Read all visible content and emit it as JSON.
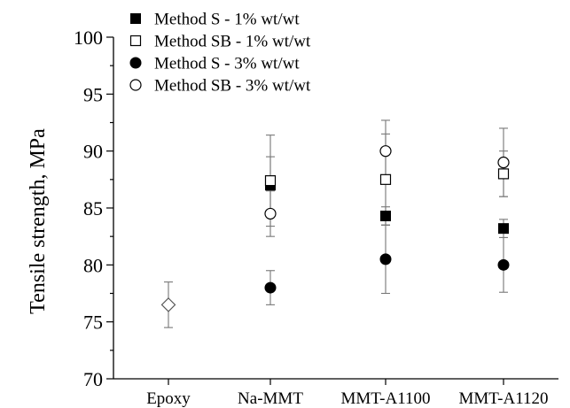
{
  "chart_data": {
    "type": "scatter",
    "title": "",
    "xlabel": "",
    "ylabel": "Tensile strength, MPa",
    "ylim": [
      70,
      100
    ],
    "yticks": [
      70,
      75,
      80,
      85,
      90,
      95,
      100
    ],
    "grid": false,
    "legend_position": "top-left",
    "categories": [
      "Epoxy",
      "Na-MMT",
      "MMT-A1100",
      "MMT-A1120"
    ],
    "series": [
      {
        "name": "Method S - 1% wt/wt",
        "marker": "square-filled",
        "values": [
          null,
          87.0,
          84.3,
          83.2
        ],
        "errors": [
          null,
          2.5,
          0.8,
          0.8
        ]
      },
      {
        "name": "Method SB - 1% wt/wt",
        "marker": "square-open",
        "values": [
          null,
          87.4,
          87.5,
          88.0
        ],
        "errors": [
          null,
          4.0,
          4.0,
          2.0
        ]
      },
      {
        "name": "Method S - 3% wt/wt",
        "marker": "circle-filled",
        "values": [
          null,
          78.0,
          80.5,
          80.0
        ],
        "errors": [
          null,
          1.5,
          3.0,
          2.4
        ]
      },
      {
        "name": "Method SB - 3% wt/wt",
        "marker": "circle-open",
        "values": [
          null,
          84.5,
          90.0,
          89.0
        ],
        "errors": [
          null,
          2.0,
          2.7,
          3.0
        ]
      },
      {
        "marker": "diamond-open",
        "values": [
          76.5,
          null,
          null,
          null
        ],
        "errors": [
          2.0,
          null,
          null,
          null
        ]
      }
    ]
  }
}
